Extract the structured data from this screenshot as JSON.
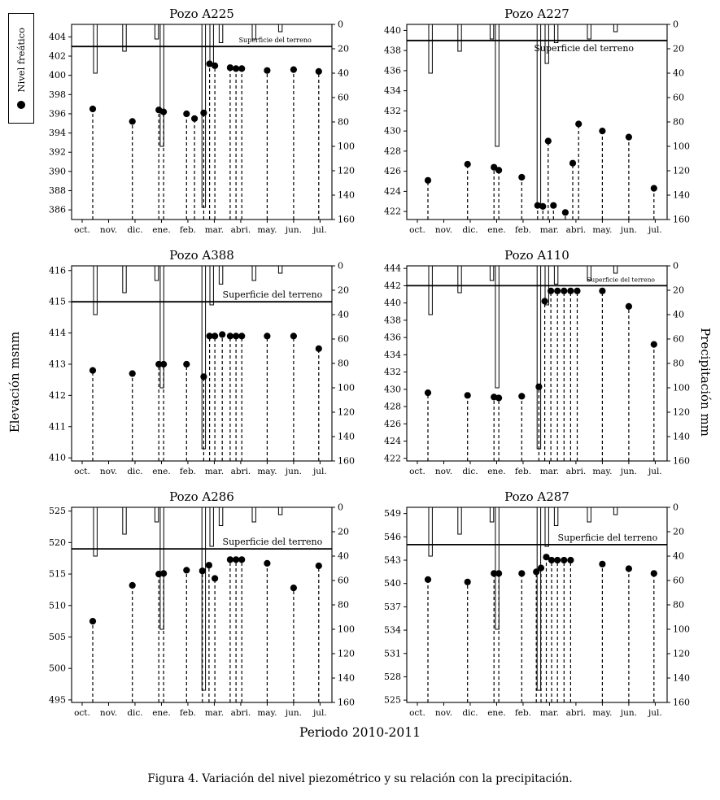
{
  "figure": {
    "legend": {
      "label": "Nivel freático"
    },
    "axes": {
      "left_label": "Elevación msnm",
      "right_label": "Precipitación mm",
      "bottom_label": "Periodo 2010-2011"
    },
    "caption": "Figura 4. Variación del nivel piezométrico y su relación con la precipitación.",
    "colors": {
      "ink": "#000000",
      "background": "#ffffff"
    }
  },
  "chart_data": {
    "type": "scatter+bar",
    "months": [
      "oct.",
      "nov.",
      "dic.",
      "ene.",
      "feb.",
      "mar.",
      "abri.",
      "may.",
      "jun.",
      "jul."
    ],
    "precip_axis": {
      "ticks": [
        0,
        20,
        40,
        60,
        80,
        100,
        120,
        140,
        160
      ],
      "range": [
        0,
        160
      ],
      "inverted": true
    },
    "precipitation_bars": {
      "x_month": [
        0.5,
        1.6,
        2.82,
        3.02,
        4.6,
        4.9,
        5.25,
        6.5,
        7.5
      ],
      "mm": [
        40,
        22,
        12,
        100,
        150,
        32,
        15,
        12,
        6
      ]
    },
    "charts": [
      {
        "title": "Pozo A225",
        "elev_range": [
          385.0,
          405.3
        ],
        "elev_ticks": [
          386,
          388,
          390,
          392,
          394,
          396,
          398,
          400,
          402,
          404
        ],
        "terrain_elevation": 403,
        "terrain_label": "Superficie del terreno",
        "terrain_label_style": {
          "font": 8,
          "pos": "above",
          "cx": 7.3
        },
        "water_level": [
          [
            0.4,
            396.5
          ],
          [
            1.9,
            395.2
          ],
          [
            2.9,
            396.4
          ],
          [
            3.08,
            396.2
          ],
          [
            3.95,
            396.0
          ],
          [
            4.25,
            395.5
          ],
          [
            4.6,
            396.1
          ],
          [
            4.82,
            401.2
          ],
          [
            5.02,
            401.0
          ],
          [
            5.6,
            400.8
          ],
          [
            5.82,
            400.7
          ],
          [
            6.04,
            400.7
          ],
          [
            7.0,
            400.5
          ],
          [
            8.0,
            400.6
          ],
          [
            8.95,
            400.4
          ]
        ]
      },
      {
        "title": "Pozo A227",
        "elev_range": [
          421.2,
          440.6
        ],
        "elev_ticks": [
          422,
          424,
          426,
          428,
          430,
          432,
          434,
          436,
          438,
          440
        ],
        "terrain_elevation": 439,
        "terrain_label": "Superficie del terreno",
        "terrain_label_style": {
          "font": 11,
          "pos": "below",
          "cx": 6.3
        },
        "water_level": [
          [
            0.4,
            425.1
          ],
          [
            1.9,
            426.7
          ],
          [
            2.9,
            426.4
          ],
          [
            3.08,
            426.1
          ],
          [
            3.95,
            425.4
          ],
          [
            4.55,
            422.6
          ],
          [
            4.75,
            422.5
          ],
          [
            4.95,
            429.0
          ],
          [
            5.15,
            422.6
          ],
          [
            5.6,
            421.9
          ],
          [
            5.88,
            426.8
          ],
          [
            6.1,
            430.7
          ],
          [
            7.0,
            430.0
          ],
          [
            8.0,
            429.4
          ],
          [
            8.95,
            424.3
          ]
        ]
      },
      {
        "title": "Pozo A388",
        "elev_range": [
          409.9,
          416.15
        ],
        "elev_ticks": [
          410,
          411,
          412,
          413,
          414,
          415,
          416
        ],
        "terrain_elevation": 415,
        "terrain_label": "Superficie del terreno",
        "terrain_label_style": {
          "font": 11,
          "pos": "above",
          "cx": 7.2
        },
        "water_level": [
          [
            0.4,
            412.8
          ],
          [
            1.9,
            412.7
          ],
          [
            2.9,
            413.0
          ],
          [
            3.08,
            413.0
          ],
          [
            3.95,
            413.0
          ],
          [
            4.6,
            412.6
          ],
          [
            4.82,
            413.9
          ],
          [
            5.02,
            413.9
          ],
          [
            5.3,
            413.95
          ],
          [
            5.6,
            413.9
          ],
          [
            5.82,
            413.9
          ],
          [
            6.04,
            413.9
          ],
          [
            7.0,
            413.9
          ],
          [
            8.0,
            413.9
          ],
          [
            8.95,
            413.5
          ]
        ]
      },
      {
        "title": "Pozo A110",
        "elev_range": [
          421.7,
          444.3
        ],
        "elev_ticks": [
          422,
          424,
          426,
          428,
          430,
          432,
          434,
          436,
          438,
          440,
          442,
          444
        ],
        "terrain_elevation": 442,
        "terrain_label": "Superficie del terreno",
        "terrain_label_style": {
          "font": 7.5,
          "pos": "above",
          "cx": 7.7
        },
        "water_level": [
          [
            0.4,
            429.6
          ],
          [
            1.9,
            429.3
          ],
          [
            2.9,
            429.1
          ],
          [
            3.08,
            429.0
          ],
          [
            3.95,
            429.2
          ],
          [
            4.6,
            430.3
          ],
          [
            4.82,
            440.2
          ],
          [
            5.05,
            441.4
          ],
          [
            5.3,
            441.4
          ],
          [
            5.55,
            441.4
          ],
          [
            5.8,
            441.4
          ],
          [
            6.05,
            441.4
          ],
          [
            7.0,
            441.4
          ],
          [
            8.0,
            439.6
          ],
          [
            8.95,
            435.2
          ]
        ]
      },
      {
        "title": "Pozo A286",
        "elev_range": [
          494.6,
          525.6
        ],
        "elev_ticks": [
          495,
          500,
          505,
          510,
          515,
          520,
          525
        ],
        "terrain_elevation": 519,
        "terrain_label": "Superficie del terreno",
        "terrain_label_style": {
          "font": 11,
          "pos": "above",
          "cx": 7.2
        },
        "water_level": [
          [
            0.4,
            507.5
          ],
          [
            1.9,
            513.2
          ],
          [
            2.9,
            515.0
          ],
          [
            3.08,
            515.1
          ],
          [
            3.95,
            515.6
          ],
          [
            4.55,
            515.5
          ],
          [
            4.8,
            516.4
          ],
          [
            5.02,
            514.3
          ],
          [
            5.6,
            517.3
          ],
          [
            5.82,
            517.3
          ],
          [
            6.04,
            517.3
          ],
          [
            7.0,
            516.7
          ],
          [
            8.0,
            512.8
          ],
          [
            8.95,
            516.3
          ]
        ]
      },
      {
        "title": "Pozo A287",
        "elev_range": [
          524.7,
          549.8
        ],
        "elev_ticks": [
          525,
          528,
          531,
          534,
          537,
          540,
          543,
          546,
          549
        ],
        "terrain_elevation": 545,
        "terrain_label": "Superficie del terreno",
        "terrain_label_style": {
          "font": 11,
          "pos": "above",
          "cx": 7.2
        },
        "water_level": [
          [
            0.4,
            540.5
          ],
          [
            1.9,
            540.2
          ],
          [
            2.9,
            541.3
          ],
          [
            3.08,
            541.3
          ],
          [
            3.95,
            541.3
          ],
          [
            4.5,
            541.5
          ],
          [
            4.68,
            542.0
          ],
          [
            4.88,
            543.4
          ],
          [
            5.08,
            543.0
          ],
          [
            5.3,
            543.0
          ],
          [
            5.55,
            543.0
          ],
          [
            5.8,
            543.0
          ],
          [
            7.0,
            542.5
          ],
          [
            8.0,
            541.9
          ],
          [
            8.95,
            541.3
          ]
        ]
      }
    ]
  }
}
